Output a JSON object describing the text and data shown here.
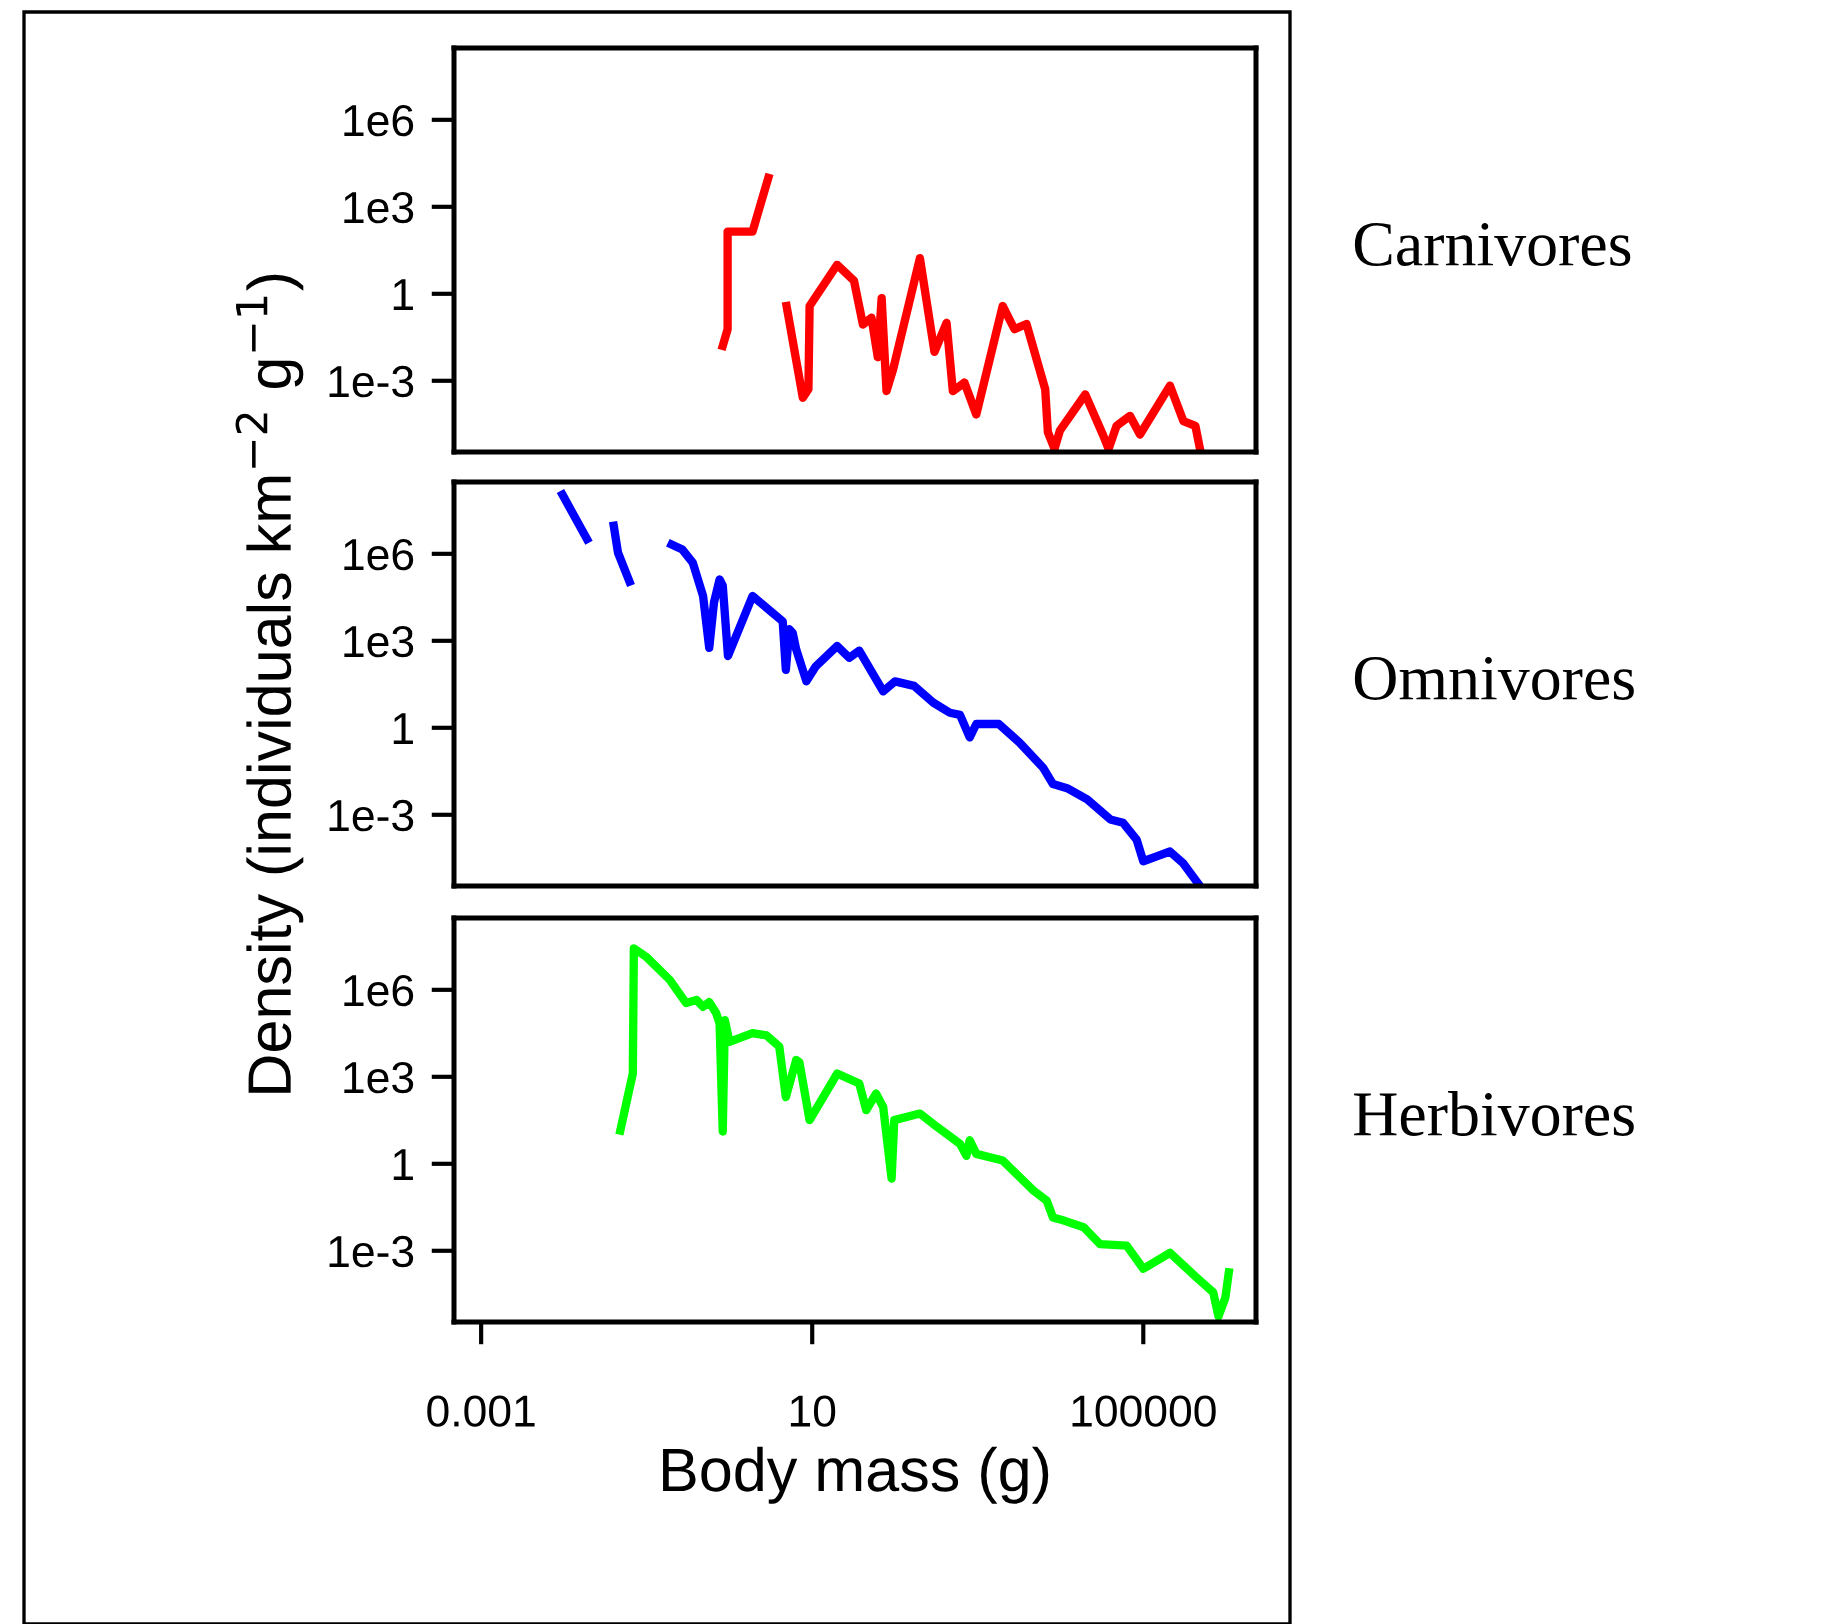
{
  "chart_data": [
    {
      "type": "line",
      "annotations": [
        "Carnivores"
      ],
      "log": "xy",
      "xlim": [
        0.00047,
        2300000
      ],
      "ylim": [
        3.5e-06,
        300000000
      ],
      "xticks": [
        0.001,
        10,
        100000
      ],
      "yticks": [
        {
          "value": 1000000,
          "label": "1e6"
        },
        {
          "value": 1000,
          "label": "1e3"
        },
        {
          "value": 1,
          "label": "1"
        },
        {
          "value": 0.001,
          "label": "1e-3"
        }
      ],
      "tick_labels": "y",
      "grid": false,
      "series": [
        {
          "color": "#ff0000",
          "x": [
            0.83,
            0.95,
            0.95,
            1.9,
            2.95
          ],
          "values": [
            0.016,
            0.06,
            140,
            140,
            10000
          ]
        },
        {
          "color": "#ff0000",
          "x": [
            4.9,
            7.7,
            9.0,
            9.3,
            20,
            32,
            41,
            52,
            62,
            69,
            79,
            95,
            200,
            300,
            420,
            500,
            690,
            960,
            2000,
            2780,
            3880,
            6530,
            7030,
            8460,
            9820,
            19900,
            32800,
            38100,
            47500,
            69000,
            91200,
            210000,
            305000,
            426000,
            484000
          ],
          "values": [
            0.38,
            0.00026,
            0.00051,
            0.38,
            10,
            2.8,
            0.087,
            0.15,
            0.0065,
            0.71,
            0.00044,
            0.0025,
            17,
            0.01,
            0.1,
            0.00044,
            0.00087,
            6.9e-05,
            0.38,
            0.06,
            0.091,
            0.00051,
            1.7e-05,
            4.5e-06,
            1.9e-05,
            0.00034,
            1.3e-05,
            4.5e-06,
            2.8e-05,
            6.2e-05,
            1.4e-05,
            0.00068,
            4.1e-05,
            2.8e-05,
            4.5e-06
          ]
        }
      ]
    },
    {
      "type": "line",
      "annotations": [
        "Omnivores"
      ],
      "ylabel": "Density (individuals km$^{−2}$ g$^{−1}$)",
      "log": "xy",
      "xlim": [
        0.00047,
        2300000
      ],
      "ylim": [
        3.5e-06,
        300000000
      ],
      "xticks": [
        0.001,
        10,
        100000
      ],
      "yticks": [
        {
          "value": 1000000,
          "label": "1e6"
        },
        {
          "value": 1000,
          "label": "1e3"
        },
        {
          "value": 1,
          "label": "1"
        },
        {
          "value": 0.001,
          "label": "1e-3"
        }
      ],
      "tick_labels": "y",
      "grid": false,
      "series": [
        {
          "color": "#0000ff",
          "x": [
            0.0096,
            0.019
          ],
          "values": [
            110000000,
            3200000
          ]
        },
        {
          "color": "#0000ff",
          "x": [
            0.04,
            0.045,
            0.062
          ],
          "values": [
            9300000,
            1100000,
            110000
          ]
        },
        {
          "color": "#0000ff",
          "x": [
            0.2,
            0.27,
            0.36,
            0.48,
            0.57,
            0.65,
            0.76,
            0.83,
            0.96,
            1.9,
            4.4,
            4.8,
            5.3,
            5.8,
            6.4,
            8.5,
            11,
            20,
            28,
            37,
            72,
            100,
            170,
            290,
            460,
            610,
            800,
            960,
            1800,
            3200,
            6200,
            8100,
            12000,
            21000,
            40000,
            57000,
            83000,
            100000,
            145000,
            210000,
            300000,
            480000
          ],
          "values": [
            2100000,
            1400000,
            500000,
            35000,
            570,
            21000,
            130000,
            80000,
            300,
            35000,
            4700,
            100,
            2500,
            1900,
            510,
            40,
            130,
            660,
            260,
            460,
            18,
            40,
            28,
            7.4,
            3.3,
            2.8,
            0.47,
            1.35,
            1.35,
            0.31,
            0.041,
            0.0115,
            0.0083,
            0.0034,
            0.00069,
            0.00053,
            0.00014,
            2.5e-05,
            3.7e-05,
            5.4e-05,
            2.2e-05,
            3.6e-06
          ]
        }
      ]
    },
    {
      "type": "line",
      "annotations": [
        "Herbivores"
      ],
      "xlabel": "Body mass (g)",
      "log": "xy",
      "xlim": [
        0.00047,
        2300000
      ],
      "ylim": [
        3.5e-06,
        300000000
      ],
      "xticks": [
        0.001,
        10,
        100000
      ],
      "yticks": [
        {
          "value": 1000000,
          "label": "1e6"
        },
        {
          "value": 1000,
          "label": "1e3"
        },
        {
          "value": 1,
          "label": "1"
        },
        {
          "value": 0.001,
          "label": "1e-3"
        }
      ],
      "grid": false,
      "series": [
        {
          "color": "#00ff00",
          "x": [
            0.048,
            0.068,
            0.07,
            0.098,
            0.19,
            0.3,
            0.4,
            0.48,
            0.57,
            0.69,
            0.76,
            0.83,
            0.88,
            1.0,
            1.9,
            2.8,
            4.0,
            4.8,
            6.4,
            7.0,
            9.3,
            20,
            37,
            45,
            59,
            72,
            91,
            98,
            200,
            320,
            610,
            730,
            800,
            960,
            2000,
            4700,
            6800,
            8100,
            11000,
            19000,
            30000,
            63000,
            100000,
            210000,
            440000,
            700000,
            810000,
            980000,
            1080000
          ],
          "values": [
            14,
            1300,
            27000000,
            14000000,
            2200000,
            350000,
            450000,
            260000,
            380000,
            160000,
            70000,
            13,
            90000,
            16000,
            32000,
            27000,
            11000,
            200,
            3800,
            3200,
            32,
            1300,
            590,
            71,
            265,
            91,
            0.31,
            32,
            54,
            19,
            4.9,
            1.9,
            6.5,
            2.2,
            1.3,
            0.12,
            0.054,
            0.014,
            0.011,
            0.0065,
            0.0017,
            0.0015,
            0.00024,
            0.00085,
            0.00012,
            3.7e-05,
            5.5e-06,
            2.4e-05,
            0.00018
          ]
        }
      ]
    }
  ]
}
